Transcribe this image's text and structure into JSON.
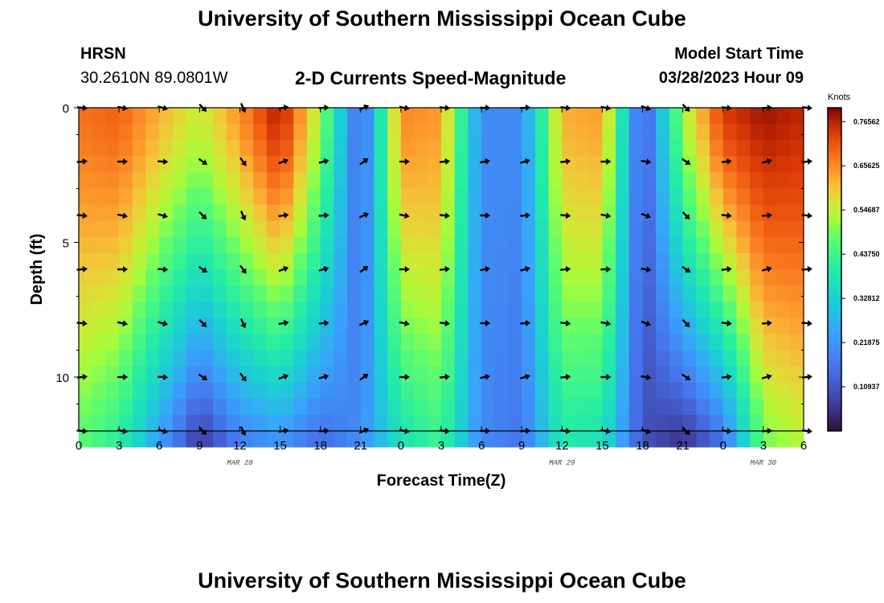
{
  "header": {
    "title": "University of Southern Mississippi Ocean Cube",
    "station": "HRSN",
    "coords": "30.2610N  89.0801W",
    "plot_title": "2-D Currents Speed-Magnitude",
    "model_start_label": "Model Start Time",
    "model_start_value": "03/28/2023 Hour 09"
  },
  "footer": {
    "title": "University of Southern Mississippi Ocean Cube"
  },
  "chart_data": {
    "type": "heatmap",
    "title": "2-D Currents Speed-Magnitude",
    "xlabel": "Forecast Time(Z)",
    "ylabel": "Depth (ft)",
    "x_range_hours": [
      0,
      54
    ],
    "x_tick_labels": [
      "0",
      "3",
      "6",
      "9",
      "12",
      "15",
      "18",
      "21",
      "0",
      "3",
      "6",
      "9",
      "12",
      "15",
      "18",
      "21",
      "0",
      "3",
      "6"
    ],
    "date_labels": [
      {
        "text": "MAR 28",
        "hour": 12
      },
      {
        "text": "MAR 29",
        "hour": 36
      },
      {
        "text": "MAR 30",
        "hour": 51
      }
    ],
    "depth_range_ft": [
      0,
      12
    ],
    "y_ticks": [
      0,
      5,
      10
    ],
    "colorbar": {
      "units": "Knots",
      "min": 0,
      "max": 0.8,
      "labels": [
        "0.76562",
        "0.65625",
        "0.54687",
        "0.43750",
        "0.32812",
        "0.21875",
        "0.10937"
      ]
    },
    "speed_profiles_knots": [
      {
        "hour": 0,
        "surface": 0.68,
        "bottom": 0.48
      },
      {
        "hour": 3,
        "surface": 0.7,
        "bottom": 0.42
      },
      {
        "hour": 6,
        "surface": 0.62,
        "bottom": 0.25
      },
      {
        "hour": 9,
        "surface": 0.55,
        "bottom": 0.08
      },
      {
        "hour": 12,
        "surface": 0.65,
        "bottom": 0.2
      },
      {
        "hour": 15,
        "surface": 0.78,
        "bottom": 0.24
      },
      {
        "hour": 18,
        "surface": 0.52,
        "bottom": 0.16
      },
      {
        "hour": 21,
        "surface": 0.12,
        "bottom": 0.2
      },
      {
        "hour": 24,
        "surface": 0.66,
        "bottom": 0.38
      },
      {
        "hour": 27,
        "surface": 0.64,
        "bottom": 0.44
      },
      {
        "hour": 30,
        "surface": 0.2,
        "bottom": 0.2
      },
      {
        "hour": 33,
        "surface": 0.2,
        "bottom": 0.16
      },
      {
        "hour": 36,
        "surface": 0.62,
        "bottom": 0.4
      },
      {
        "hour": 39,
        "surface": 0.64,
        "bottom": 0.38
      },
      {
        "hour": 42,
        "surface": 0.1,
        "bottom": 0.1
      },
      {
        "hour": 45,
        "surface": 0.52,
        "bottom": 0.07
      },
      {
        "hour": 48,
        "surface": 0.74,
        "bottom": 0.18
      },
      {
        "hour": 51,
        "surface": 0.78,
        "bottom": 0.5
      },
      {
        "hour": 54,
        "surface": 0.76,
        "bottom": 0.55
      }
    ],
    "arrow_depths_ft": [
      0,
      2,
      4,
      6,
      8,
      10,
      12
    ]
  }
}
